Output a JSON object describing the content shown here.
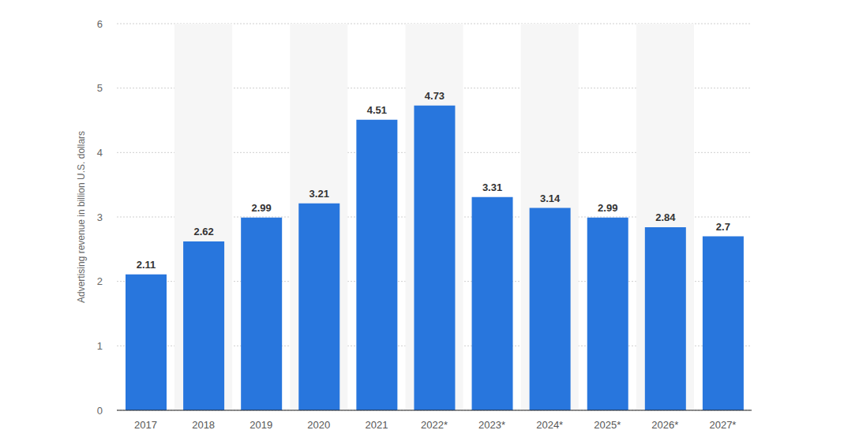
{
  "chart_data": {
    "type": "bar",
    "y_label": "Advertising revenue in billion U.S. dollars",
    "categories": [
      "2017",
      "2018",
      "2019",
      "2020",
      "2021",
      "2022*",
      "2023*",
      "2024*",
      "2025*",
      "2026*",
      "2027*"
    ],
    "values": [
      2.11,
      2.62,
      2.99,
      3.21,
      4.51,
      4.73,
      3.31,
      3.14,
      2.99,
      2.84,
      2.7
    ],
    "color": "#2876dd",
    "ylim": [
      0,
      6
    ],
    "yticks": [
      0,
      1,
      2,
      3,
      4,
      5,
      6
    ],
    "grid": true,
    "data_labels": true
  }
}
